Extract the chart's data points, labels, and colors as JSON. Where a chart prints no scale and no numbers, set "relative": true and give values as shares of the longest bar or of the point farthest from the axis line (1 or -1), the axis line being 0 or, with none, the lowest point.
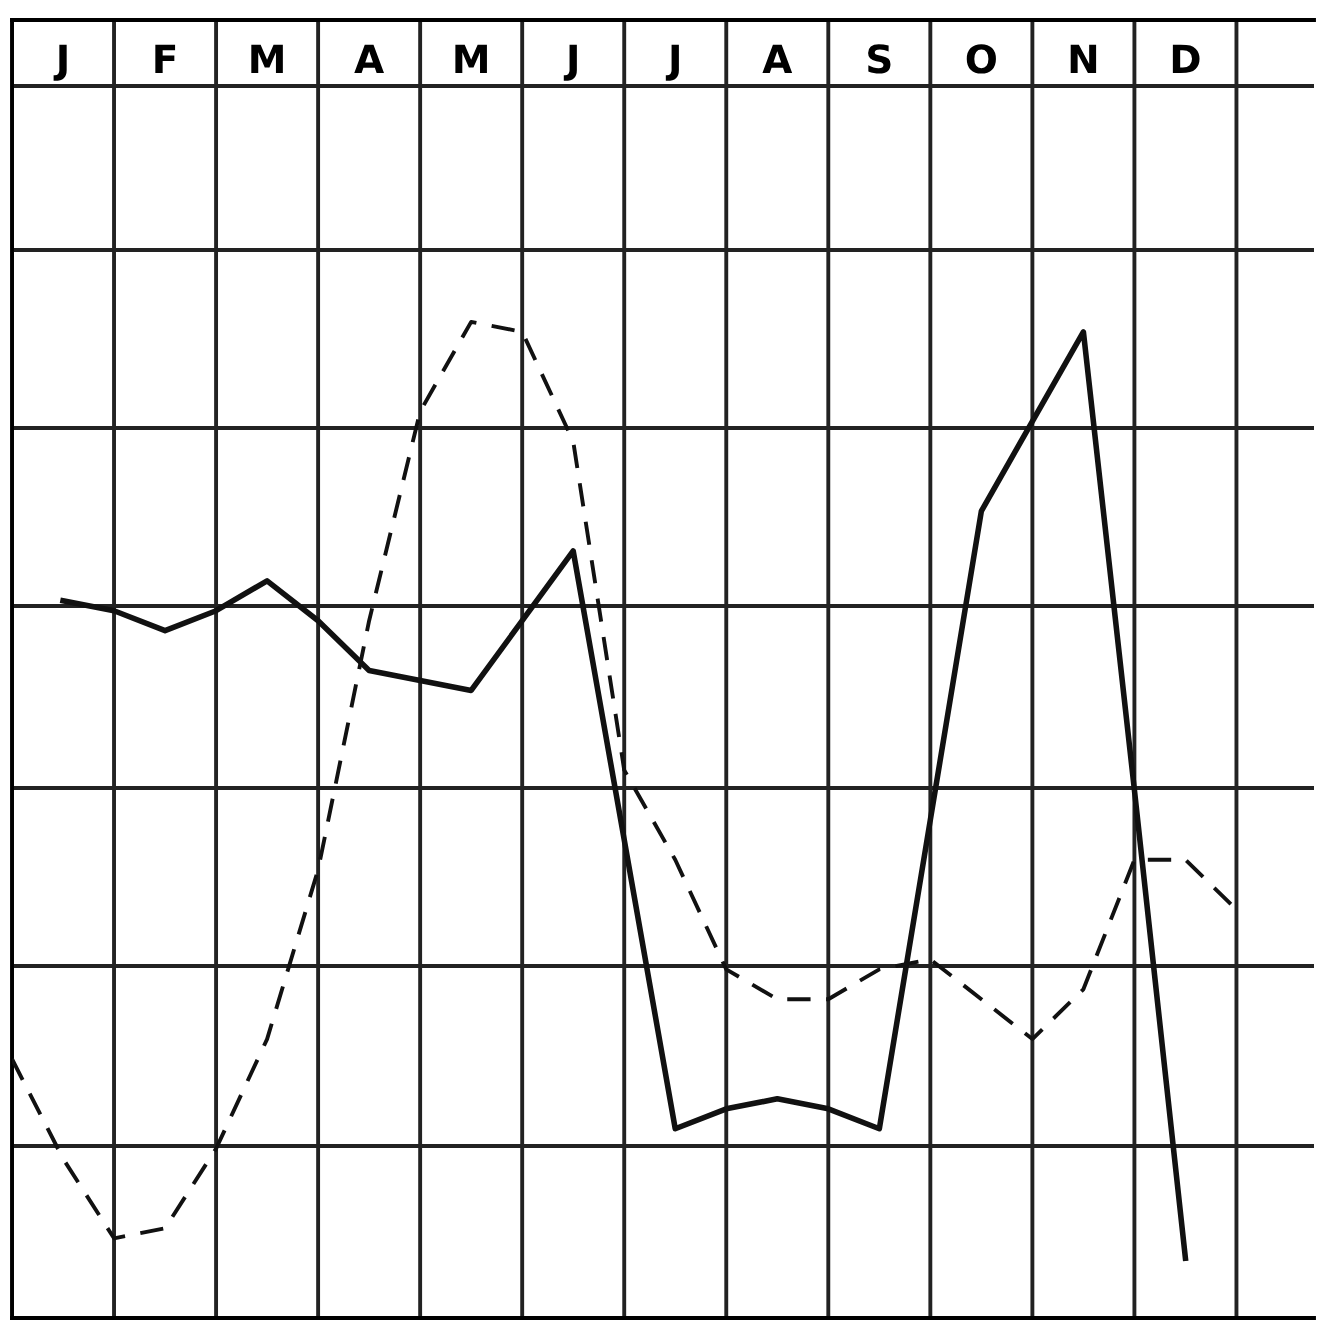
{
  "chart_data": {
    "type": "line",
    "relative": true,
    "grid": true,
    "legend": false,
    "marker": "none",
    "categories": [
      null,
      "J",
      null,
      "F",
      null,
      "M",
      null,
      "A",
      null,
      "M",
      null,
      "J",
      null,
      "J",
      null,
      "A",
      null,
      "S",
      null,
      "O",
      null,
      "N",
      null,
      "D",
      null
    ],
    "series": [
      {
        "color": "#111111",
        "line_style": "solid",
        "values": [
          null,
          0.72,
          0.71,
          0.69,
          0.71,
          0.74,
          0.7,
          0.65,
          0.64,
          0.63,
          0.7,
          0.77,
          0.48,
          0.19,
          0.21,
          0.22,
          0.21,
          0.19,
          0.5,
          0.81,
          0.9,
          0.99,
          0.53,
          0.06,
          null
        ]
      },
      {
        "color": "#111111",
        "line_style": "dashed",
        "values": [
          0.26,
          0.16,
          0.08,
          0.09,
          0.17,
          0.28,
          0.45,
          0.7,
          0.91,
          1.0,
          0.99,
          0.88,
          0.55,
          0.46,
          0.35,
          0.32,
          0.32,
          0.35,
          0.36,
          0.32,
          0.28,
          0.33,
          0.46,
          0.46,
          0.41
        ]
      }
    ]
  }
}
